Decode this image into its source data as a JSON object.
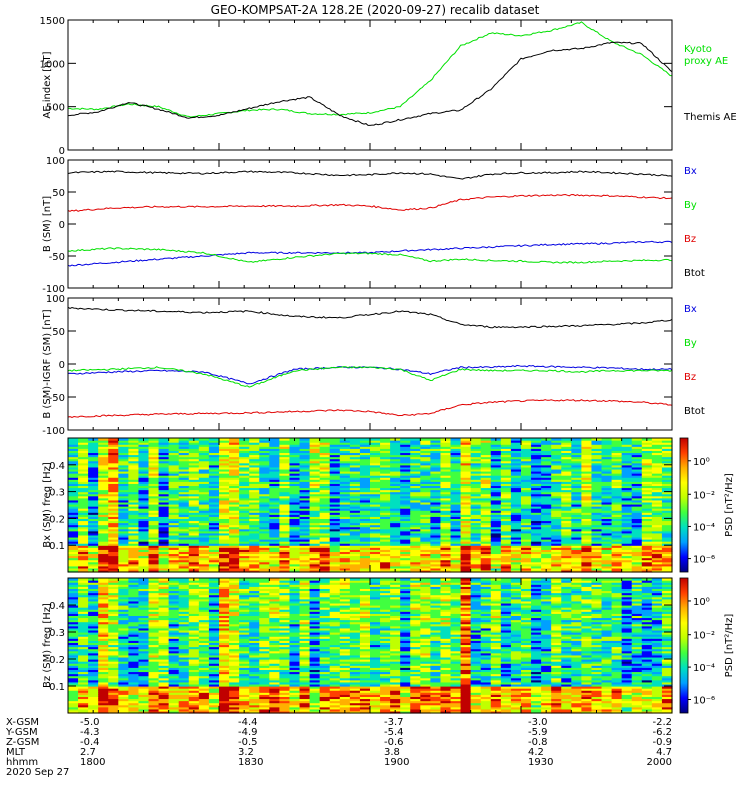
{
  "title": "GEO-KOMPSAT-2A 128.2E (2020-09-27) recalib dataset",
  "colors": {
    "black": "#000000",
    "green": "#00e000",
    "red": "#e00000",
    "blue": "#0000e0"
  },
  "chart_data": [
    {
      "type": "line",
      "ylabel": "AE index [nT]",
      "ylim": [
        0,
        1500
      ],
      "yticks": [
        0,
        500,
        1000,
        1500
      ],
      "x_range_hours": [
        18,
        20
      ],
      "series": [
        {
          "name": "Kyoto proxy AE",
          "color": "#00e000",
          "x": [
            18.0,
            18.1,
            18.2,
            18.3,
            18.4,
            18.5,
            18.6,
            18.7,
            18.8,
            18.9,
            19.0,
            19.1,
            19.2,
            19.3,
            19.4,
            19.5,
            19.6,
            19.7,
            19.8,
            19.9,
            20.0
          ],
          "y": [
            480,
            470,
            530,
            500,
            380,
            420,
            460,
            470,
            420,
            410,
            430,
            500,
            800,
            1200,
            1350,
            1320,
            1380,
            1470,
            1250,
            1100,
            850
          ]
        },
        {
          "name": "Themis AE",
          "color": "#000000",
          "x": [
            18.0,
            18.1,
            18.2,
            18.3,
            18.4,
            18.5,
            18.6,
            18.7,
            18.8,
            18.9,
            19.0,
            19.1,
            19.2,
            19.3,
            19.4,
            19.5,
            19.6,
            19.7,
            19.8,
            19.9,
            20.0
          ],
          "y": [
            400,
            440,
            550,
            470,
            370,
            400,
            480,
            560,
            610,
            400,
            280,
            350,
            420,
            460,
            700,
            1050,
            1150,
            1170,
            1240,
            1230,
            900
          ]
        }
      ],
      "legend": [
        "Kyoto",
        "proxy AE",
        "Themis AE"
      ]
    },
    {
      "type": "line",
      "ylabel": "B (SM) [nT]",
      "ylim": [
        -100,
        100
      ],
      "yticks": [
        -100,
        -50,
        0,
        50,
        100
      ],
      "series": [
        {
          "name": "Bx",
          "color": "#0000e0",
          "x": [
            18.0,
            18.15,
            18.3,
            18.45,
            18.6,
            18.75,
            18.9,
            19.0,
            19.1,
            19.2,
            19.3,
            19.4,
            19.5,
            19.6,
            19.7,
            19.8,
            19.9,
            20.0
          ],
          "y": [
            -65,
            -60,
            -55,
            -50,
            -45,
            -45,
            -45,
            -45,
            -42,
            -40,
            -38,
            -36,
            -34,
            -32,
            -31,
            -30,
            -28,
            -28
          ]
        },
        {
          "name": "By",
          "color": "#00e000",
          "x": [
            18.0,
            18.15,
            18.3,
            18.45,
            18.6,
            18.75,
            18.9,
            19.0,
            19.1,
            19.2,
            19.3,
            19.4,
            19.5,
            19.6,
            19.7,
            19.8,
            19.9,
            20.0
          ],
          "y": [
            -42,
            -38,
            -40,
            -45,
            -60,
            -52,
            -46,
            -46,
            -48,
            -58,
            -55,
            -57,
            -58,
            -60,
            -60,
            -58,
            -57,
            -56
          ]
        },
        {
          "name": "Bz",
          "color": "#e00000",
          "x": [
            18.0,
            18.15,
            18.3,
            18.45,
            18.6,
            18.75,
            18.9,
            19.0,
            19.1,
            19.2,
            19.3,
            19.4,
            19.5,
            19.6,
            19.7,
            19.8,
            19.9,
            20.0
          ],
          "y": [
            20,
            25,
            27,
            27,
            28,
            28,
            30,
            28,
            22,
            25,
            38,
            42,
            44,
            45,
            45,
            44,
            42,
            40
          ]
        },
        {
          "name": "Btot",
          "color": "#000000",
          "x": [
            18.0,
            18.15,
            18.3,
            18.45,
            18.6,
            18.75,
            18.9,
            19.0,
            19.1,
            19.2,
            19.3,
            19.4,
            19.5,
            19.6,
            19.7,
            19.8,
            19.9,
            20.0
          ],
          "y": [
            80,
            82,
            80,
            79,
            82,
            80,
            76,
            77,
            80,
            78,
            70,
            78,
            80,
            80,
            82,
            80,
            78,
            75
          ]
        }
      ],
      "legend": [
        "Bx",
        "By",
        "Bz",
        "Btot"
      ]
    },
    {
      "type": "line",
      "ylabel": "B (SM)-IGRF (SM) [nT]",
      "ylim": [
        -100,
        100
      ],
      "yticks": [
        -100,
        -50,
        0,
        50,
        100
      ],
      "series": [
        {
          "name": "Bx",
          "color": "#0000e0",
          "x": [
            18.0,
            18.15,
            18.3,
            18.45,
            18.6,
            18.75,
            18.9,
            19.0,
            19.1,
            19.2,
            19.3,
            19.4,
            19.5,
            19.6,
            19.7,
            19.8,
            19.9,
            20.0
          ],
          "y": [
            -15,
            -12,
            -10,
            -12,
            -30,
            -8,
            -5,
            -5,
            -8,
            -15,
            -5,
            -5,
            -3,
            -4,
            -5,
            -6,
            -8,
            -8
          ]
        },
        {
          "name": "By",
          "color": "#00e000",
          "x": [
            18.0,
            18.15,
            18.3,
            18.45,
            18.6,
            18.75,
            18.9,
            19.0,
            19.1,
            19.2,
            19.3,
            19.4,
            19.5,
            19.6,
            19.7,
            19.8,
            19.9,
            20.0
          ],
          "y": [
            -10,
            -8,
            -5,
            -15,
            -35,
            -10,
            -5,
            -5,
            -8,
            -25,
            -8,
            -10,
            -10,
            -10,
            -12,
            -10,
            -10,
            -10
          ]
        },
        {
          "name": "Bz",
          "color": "#e00000",
          "x": [
            18.0,
            18.15,
            18.3,
            18.45,
            18.6,
            18.75,
            18.9,
            19.0,
            19.1,
            19.2,
            19.3,
            19.4,
            19.5,
            19.6,
            19.7,
            19.8,
            19.9,
            20.0
          ],
          "y": [
            -80,
            -78,
            -76,
            -75,
            -74,
            -72,
            -70,
            -72,
            -78,
            -75,
            -62,
            -58,
            -56,
            -55,
            -55,
            -56,
            -58,
            -62
          ]
        },
        {
          "name": "Btot",
          "color": "#000000",
          "x": [
            18.0,
            18.15,
            18.3,
            18.45,
            18.6,
            18.75,
            18.9,
            19.0,
            19.1,
            19.2,
            19.3,
            19.4,
            19.5,
            19.6,
            19.7,
            19.8,
            19.9,
            20.0
          ],
          "y": [
            85,
            82,
            80,
            78,
            80,
            72,
            70,
            75,
            80,
            75,
            60,
            56,
            56,
            57,
            58,
            60,
            62,
            67
          ]
        }
      ],
      "legend": [
        "Bx",
        "By",
        "Bz",
        "Btot"
      ]
    },
    {
      "type": "heatmap",
      "ylabel": "Bx (SM) freq [Hz]",
      "ylim": [
        0,
        0.5
      ],
      "yticks": [
        0.1,
        0.2,
        0.3,
        0.4
      ],
      "colorbar_label": "PSD [nT²/Hz]",
      "colorbar_ticks": [
        "10⁰",
        "10⁻²",
        "10⁻⁴",
        "10⁻⁶"
      ]
    },
    {
      "type": "heatmap",
      "ylabel": "Bz (SM) freq [Hz]",
      "ylim": [
        0,
        0.5
      ],
      "yticks": [
        0.1,
        0.2,
        0.3,
        0.4
      ],
      "colorbar_label": "PSD [nT²/Hz]",
      "colorbar_ticks": [
        "10⁰",
        "10⁻²",
        "10⁻⁴",
        "10⁻⁶"
      ]
    }
  ],
  "ephemeris": {
    "row_labels": [
      "X-GSM",
      "Y-GSM",
      "Z-GSM",
      "MLT",
      "hhmm",
      "2020 Sep 27"
    ],
    "columns": [
      [
        "-5.0",
        "-4.3",
        "-0.4",
        "2.7",
        "1800"
      ],
      [
        "-4.4",
        "-4.9",
        "-0.5",
        "3.2",
        "1830"
      ],
      [
        "-3.7",
        "-5.4",
        "-0.6",
        "3.8",
        "1900"
      ],
      [
        "-3.0",
        "-5.9",
        "-0.8",
        "4.2",
        "1930"
      ],
      [
        "-2.2",
        "-6.2",
        "-0.9",
        "4.7",
        "2000"
      ]
    ]
  }
}
